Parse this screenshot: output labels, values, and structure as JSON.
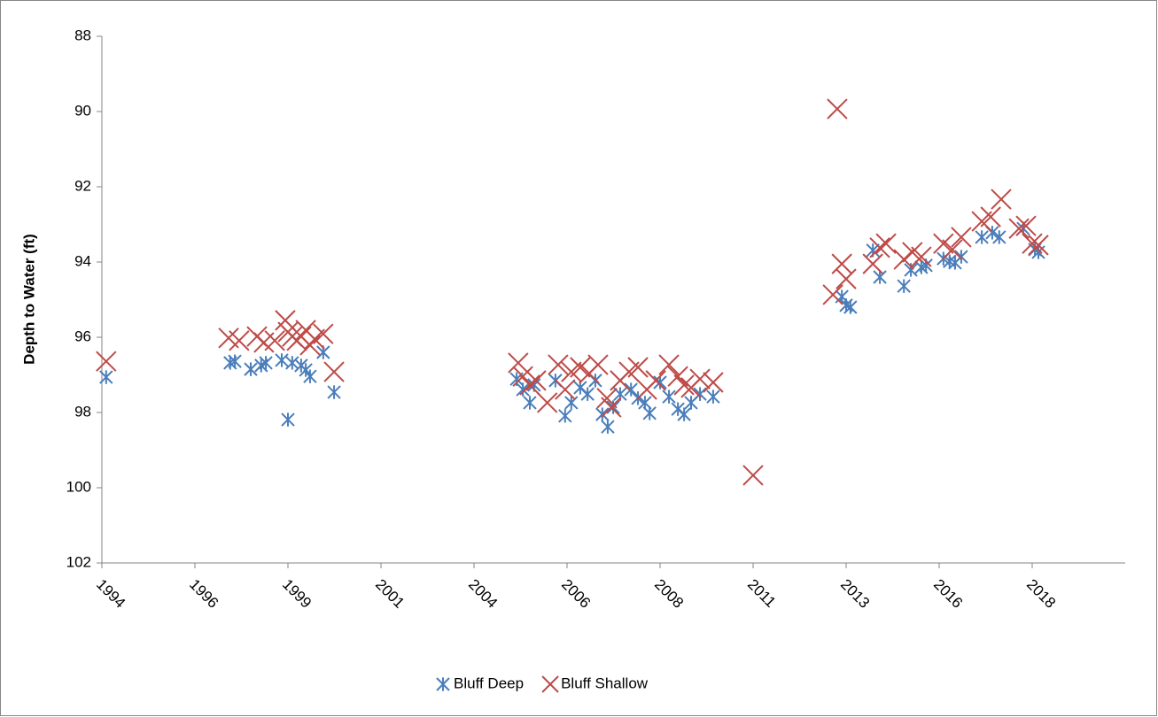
{
  "chart_data": {
    "type": "scatter",
    "y_label": "Depth to Water (ft)",
    "ylim": [
      88,
      102
    ],
    "y_reversed": true,
    "yticks": [
      88,
      90,
      92,
      94,
      96,
      98,
      100,
      102
    ],
    "xlim": [
      1994.5,
      2020.9
    ],
    "xticks": [
      {
        "value": 1994.5,
        "label": "1994"
      },
      {
        "value": 1996.9,
        "label": "1996"
      },
      {
        "value": 1999.3,
        "label": "1999"
      },
      {
        "value": 2001.7,
        "label": "2001"
      },
      {
        "value": 2004.1,
        "label": "2004"
      },
      {
        "value": 2006.5,
        "label": "2006"
      },
      {
        "value": 2008.9,
        "label": "2008"
      },
      {
        "value": 2011.3,
        "label": "2011"
      },
      {
        "value": 2013.7,
        "label": "2013"
      },
      {
        "value": 2016.1,
        "label": "2016"
      },
      {
        "value": 2018.5,
        "label": "2018"
      }
    ],
    "legend": "bottom",
    "grid": false,
    "series": [
      {
        "name": "Bluff Deep",
        "color": "#4a7ebb",
        "marker": "asterisk",
        "x": [
          1994.61,
          1997.81,
          1997.93,
          1998.34,
          1998.61,
          1998.73,
          1999.14,
          1999.3,
          1999.41,
          1999.64,
          1999.76,
          1999.87,
          2000.21,
          2000.49,
          2005.2,
          2005.36,
          2005.54,
          2005.65,
          2006.2,
          2006.45,
          2006.61,
          2006.84,
          2007.03,
          2007.23,
          2007.41,
          2007.55,
          2007.69,
          2007.87,
          2008.15,
          2008.33,
          2008.51,
          2008.63,
          2008.9,
          2009.13,
          2009.36,
          2009.52,
          2009.7,
          2009.93,
          2010.27,
          2013.59,
          2013.7,
          2013.81,
          2014.39,
          2014.57,
          2015.19,
          2015.37,
          2015.64,
          2015.76,
          2016.21,
          2016.37,
          2016.51,
          2016.67,
          2017.2,
          2017.47,
          2017.65,
          2018.27,
          2018.57,
          2018.66
        ],
        "values": [
          97.06,
          96.68,
          96.64,
          96.85,
          96.75,
          96.68,
          96.61,
          98.19,
          96.68,
          96.75,
          96.87,
          97.04,
          96.4,
          97.46,
          97.11,
          97.39,
          97.74,
          97.27,
          97.15,
          98.09,
          97.74,
          97.34,
          97.51,
          97.15,
          98.05,
          98.38,
          97.86,
          97.51,
          97.39,
          97.62,
          97.74,
          98.02,
          97.2,
          97.58,
          97.91,
          98.05,
          97.74,
          97.51,
          97.58,
          94.92,
          95.15,
          95.2,
          93.69,
          94.4,
          94.64,
          94.21,
          94.14,
          94.09,
          93.91,
          93.98,
          94.02,
          93.86,
          93.34,
          93.22,
          93.34,
          93.11,
          93.67,
          93.74
        ]
      },
      {
        "name": "Bluff Shallow",
        "color": "#be4b48",
        "marker": "x",
        "x": [
          1994.61,
          1997.77,
          1998.04,
          1998.5,
          1998.68,
          1998.96,
          1999.23,
          1999.3,
          1999.41,
          1999.53,
          1999.64,
          1999.76,
          1999.87,
          1999.99,
          2000.21,
          2000.49,
          2005.24,
          2005.36,
          2005.54,
          2005.7,
          2005.99,
          2006.27,
          2006.45,
          2006.61,
          2006.84,
          2007.07,
          2007.3,
          2007.53,
          2007.64,
          2007.87,
          2008.1,
          2008.33,
          2008.56,
          2008.79,
          2009.13,
          2009.36,
          2009.52,
          2009.7,
          2009.93,
          2010.27,
          2011.3,
          2013.47,
          2013.36,
          2013.59,
          2013.7,
          2014.39,
          2014.57,
          2014.73,
          2015.19,
          2015.41,
          2015.64,
          2016.21,
          2016.44,
          2016.67,
          2017.2,
          2017.43,
          2017.7,
          2018.16,
          2018.34,
          2018.5,
          2018.66
        ],
        "values": [
          96.64,
          96.02,
          96.09,
          95.98,
          96.14,
          96.09,
          95.55,
          95.86,
          95.98,
          96.09,
          95.98,
          95.81,
          96.21,
          96.05,
          95.91,
          96.92,
          96.68,
          97.04,
          97.27,
          97.15,
          97.74,
          96.73,
          97.39,
          96.92,
          96.8,
          96.96,
          96.73,
          97.62,
          97.86,
          97.15,
          96.92,
          96.8,
          97.39,
          97.15,
          96.73,
          97.04,
          97.27,
          97.34,
          97.11,
          97.2,
          99.67,
          89.93,
          94.87,
          94.05,
          94.45,
          94.05,
          93.62,
          93.51,
          93.93,
          93.74,
          93.86,
          93.51,
          93.67,
          93.34,
          92.92,
          92.8,
          92.33,
          93.11,
          93.04,
          93.51,
          93.55
        ]
      }
    ]
  }
}
